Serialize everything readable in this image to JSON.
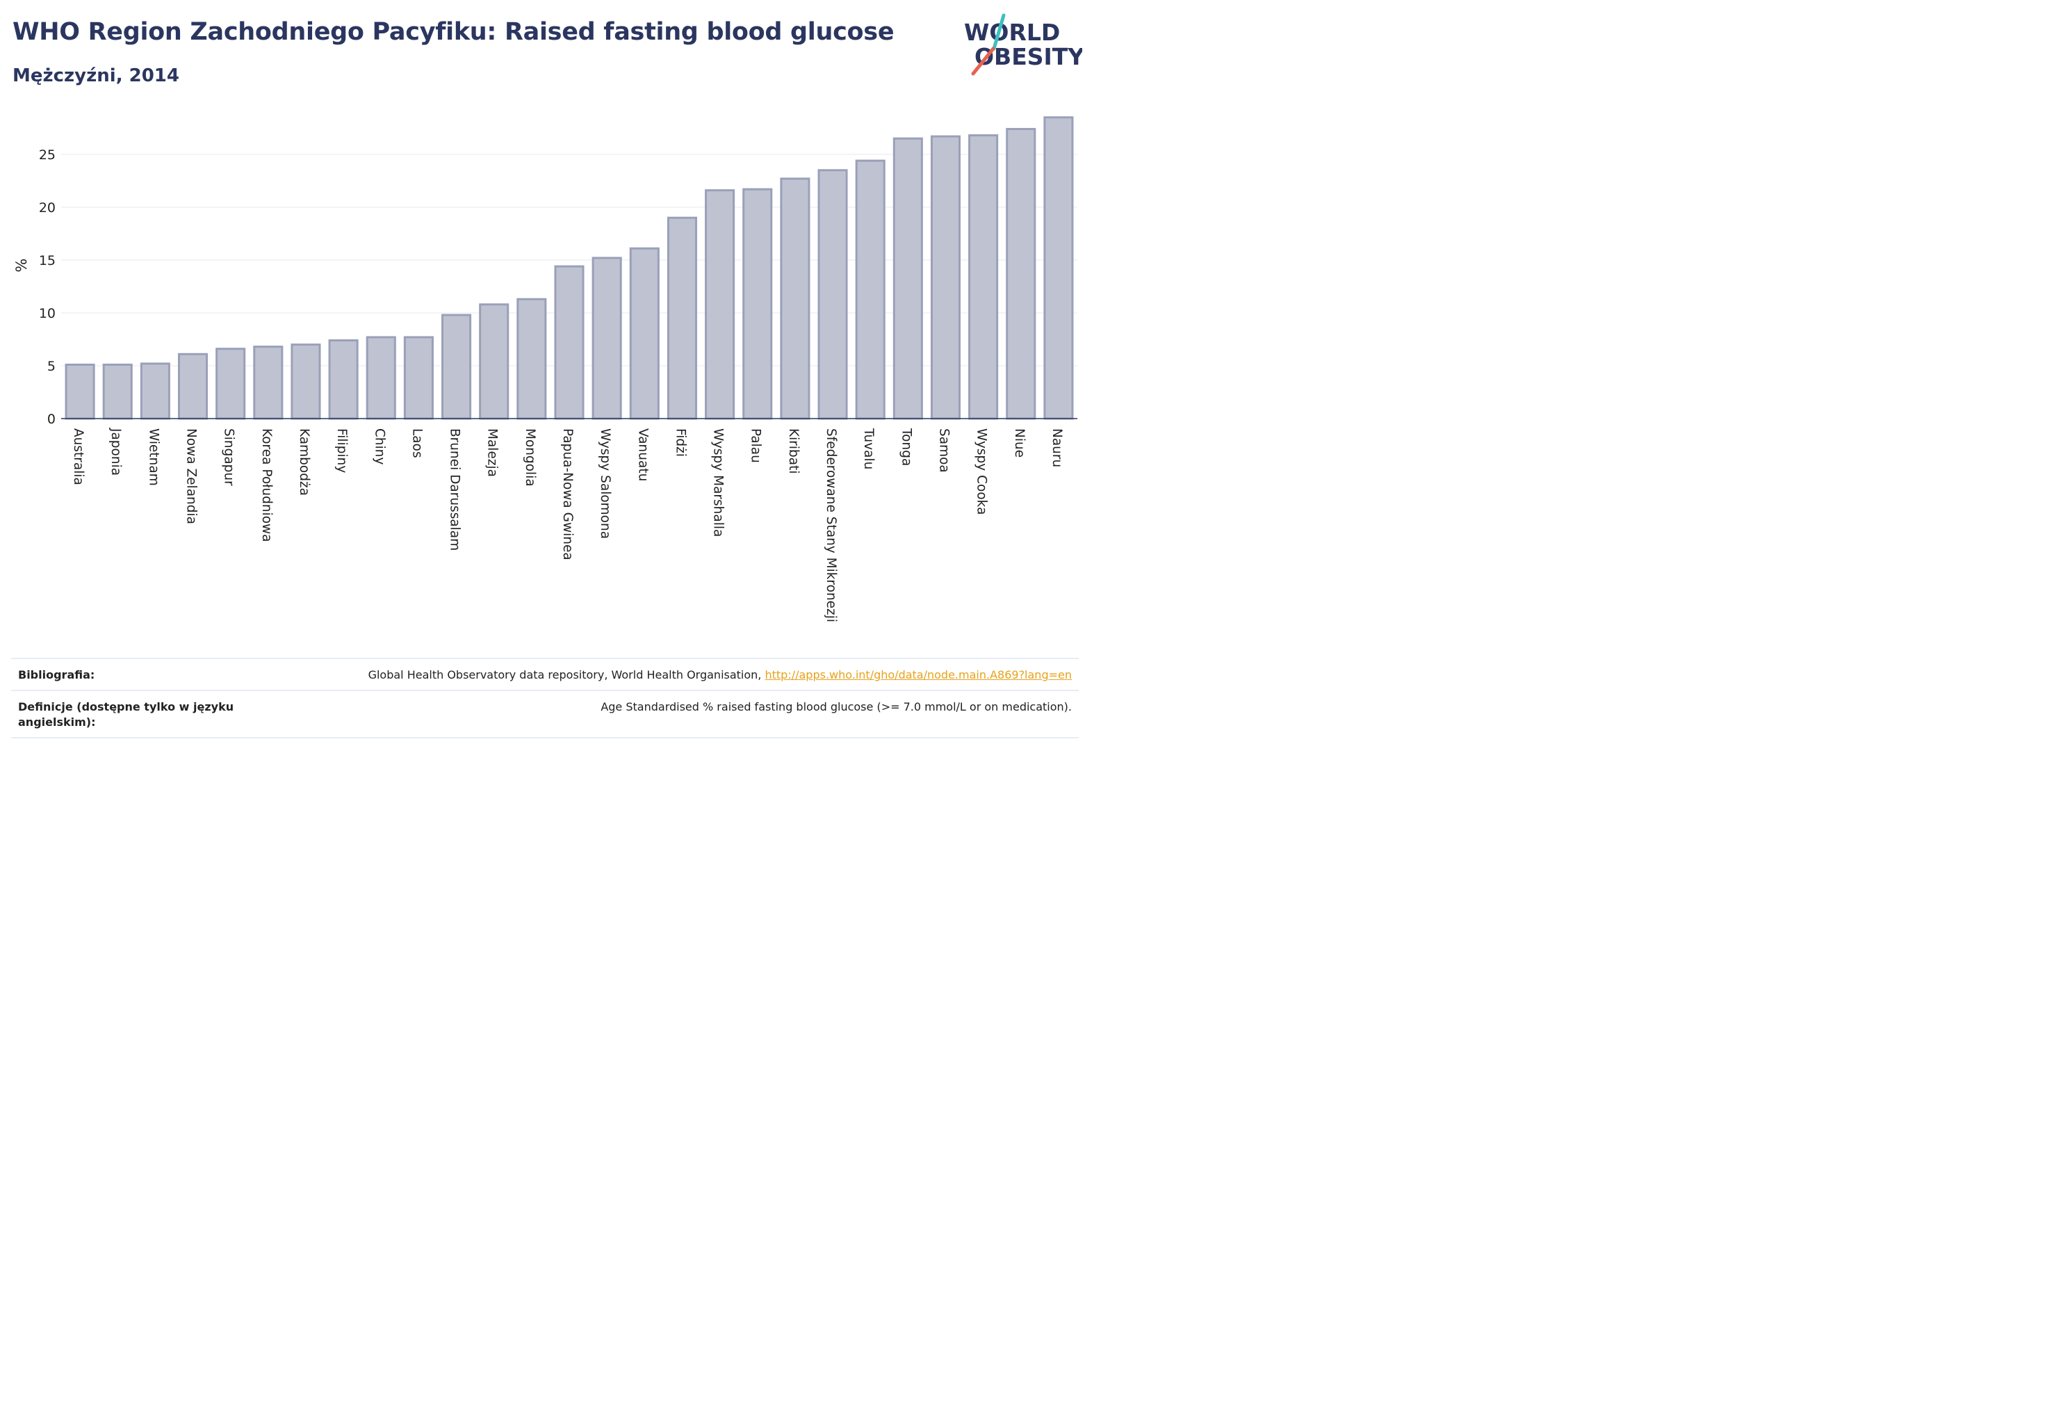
{
  "header": {
    "title": "WHO Region Zachodniego Pacyfiku: Raised fasting blood glucose",
    "subtitle": "Mężczyźni, 2014"
  },
  "logo": {
    "line1": "WORLD",
    "line2": "OBESITY",
    "accent_teal": "#3fbfbf",
    "accent_red": "#e6624f",
    "text_color": "#2b3660"
  },
  "chart_data": {
    "type": "bar",
    "ylabel": "%",
    "ylim": [
      0,
      29
    ],
    "yticks": [
      0,
      5,
      10,
      15,
      20,
      25
    ],
    "grid": true,
    "bar_color": "#bfc3d1",
    "bar_edge_color": "#9aa0b8",
    "categories": [
      "Australia",
      "Japonia",
      "Wietnam",
      "Nowa Zelandia",
      "Singapur",
      "Korea Południowa",
      "Kambodża",
      "Filipiny",
      "Chiny",
      "Laos",
      "Brunei Darussalam",
      "Malezja",
      "Mongolia",
      "Papua-Nowa Gwinea",
      "Wyspy Salomona",
      "Vanuatu",
      "Fidżi",
      "Wyspy Marshalla",
      "Palau",
      "Kiribati",
      "Sfederowane Stany Mikronezji",
      "Tuvalu",
      "Tonga",
      "Samoa",
      "Wyspy Cooka",
      "Niue",
      "Nauru"
    ],
    "values": [
      5.1,
      5.1,
      5.2,
      6.1,
      6.6,
      6.8,
      7.0,
      7.4,
      7.7,
      7.7,
      9.8,
      10.8,
      11.3,
      14.4,
      15.2,
      16.1,
      19.0,
      21.6,
      21.7,
      22.7,
      23.5,
      24.4,
      26.5,
      26.7,
      26.8,
      27.4,
      28.5
    ]
  },
  "footer": {
    "bibliography_label": "Bibliografia:",
    "bibliography_text": "Global Health Observatory data repository, World Health Organisation, ",
    "bibliography_link": "http://apps.who.int/gho/data/node.main.A869?lang=en",
    "definitions_label": "Definicje (dostępne tylko w języku angielskim):",
    "definitions_text": "Age Standardised % raised fasting blood glucose (>= 7.0 mmol/L or on medication)."
  }
}
